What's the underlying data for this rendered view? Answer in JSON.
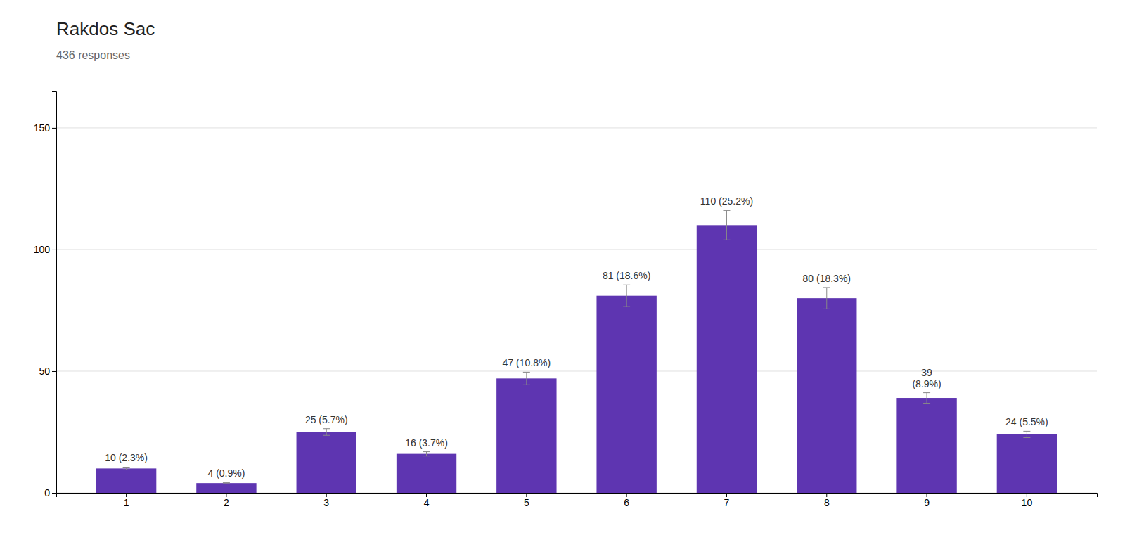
{
  "chart_data": {
    "type": "bar",
    "title": "Rakdos Sac",
    "subtitle": "436 responses",
    "categories": [
      "1",
      "2",
      "3",
      "4",
      "5",
      "6",
      "7",
      "8",
      "9",
      "10"
    ],
    "values": [
      10,
      4,
      25,
      16,
      47,
      81,
      110,
      80,
      39,
      24
    ],
    "value_labels": [
      "10 (2.3%)",
      "4 (0.9%)",
      "25 (5.7%)",
      "16 (3.7%)",
      "47 (10.8%)",
      "81 (18.6%)",
      "110 (25.2%)",
      "80 (18.3%)",
      "39\n(8.9%)",
      "24 (5.5%)"
    ],
    "errors": [
      0.55,
      0.22,
      1.375,
      0.88,
      2.585,
      4.455,
      6.05,
      4.4,
      2.145,
      1.32
    ],
    "color": "#5e35b1",
    "ylim": [
      0,
      165
    ],
    "yticks": [
      0,
      50,
      100,
      150
    ],
    "grid": true,
    "data_labels": true
  }
}
